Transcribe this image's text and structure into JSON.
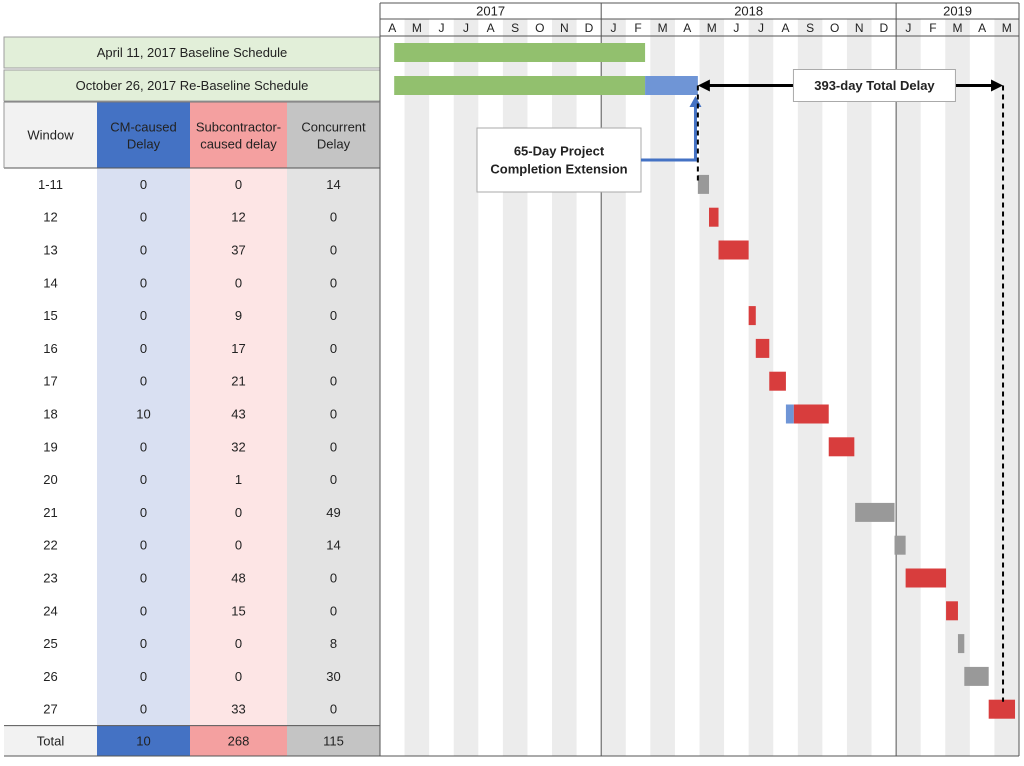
{
  "chart_data": {
    "type": "table",
    "years": [
      "2017",
      "2018",
      "2019"
    ],
    "months": [
      "A",
      "M",
      "J",
      "J",
      "A",
      "S",
      "O",
      "N",
      "D",
      "J",
      "F",
      "M",
      "A",
      "M",
      "J",
      "J",
      "A",
      "S",
      "O",
      "N",
      "D",
      "J",
      "F",
      "M",
      "A",
      "M"
    ],
    "schedules": [
      {
        "label": "April 11, 2017 Baseline Schedule",
        "start": "2017-04-11",
        "end": "2018-02-23",
        "color": "#92c06e"
      },
      {
        "label": "October 26, 2017 Re-Baseline Schedule",
        "start": "2017-04-11",
        "end": "2018-02-23",
        "color": "#92c06e",
        "extension": {
          "start": "2018-02-23",
          "end": "2018-04-29",
          "color": "#6f95d6"
        }
      }
    ],
    "columns": [
      "Window",
      "CM-caused Delay",
      "Subcontractor-caused delay",
      "Concurrent Delay"
    ],
    "column_colors": {
      "cm": "#4472c4",
      "cm_bg": "#d9e0f2",
      "sub": "#f4a0a0",
      "sub_bg": "#fde5e5",
      "conc": "#c4c4c4",
      "conc_bg": "#e3e3e3"
    },
    "rows": [
      {
        "window": "1-11",
        "cm": "0",
        "sub": "0",
        "conc": "14"
      },
      {
        "window": "12",
        "cm": "0",
        "sub": "12",
        "conc": "0"
      },
      {
        "window": "13",
        "cm": "0",
        "sub": "37",
        "conc": "0"
      },
      {
        "window": "14",
        "cm": "0",
        "sub": "0",
        "conc": "0"
      },
      {
        "window": "15",
        "cm": "0",
        "sub": "9",
        "conc": "0"
      },
      {
        "window": "16",
        "cm": "0",
        "sub": "17",
        "conc": "0"
      },
      {
        "window": "17",
        "cm": "0",
        "sub": "21",
        "conc": "0"
      },
      {
        "window": "18",
        "cm": "10",
        "sub": "43",
        "conc": "0"
      },
      {
        "window": "19",
        "cm": "0",
        "sub": "32",
        "conc": "0"
      },
      {
        "window": "20",
        "cm": "0",
        "sub": "1",
        "conc": "0"
      },
      {
        "window": "21",
        "cm": "0",
        "sub": "0",
        "conc": "49"
      },
      {
        "window": "22",
        "cm": "0",
        "sub": "0",
        "conc": "14"
      },
      {
        "window": "23",
        "cm": "0",
        "sub": "48",
        "conc": "0"
      },
      {
        "window": "24",
        "cm": "0",
        "sub": "15",
        "conc": "0"
      },
      {
        "window": "25",
        "cm": "0",
        "sub": "0",
        "conc": "8"
      },
      {
        "window": "26",
        "cm": "0",
        "sub": "0",
        "conc": "30"
      },
      {
        "window": "27",
        "cm": "0",
        "sub": "33",
        "conc": "0"
      }
    ],
    "totals": {
      "window": "Total",
      "cm": "10",
      "sub": "268",
      "conc": "115"
    },
    "delay_bars": [
      {
        "window": "1-11",
        "start": "2018-04-29",
        "days": 14,
        "type": "concurrent"
      },
      {
        "window": "12",
        "start": "2018-05-13",
        "days": 12,
        "type": "subcontractor"
      },
      {
        "window": "13",
        "start": "2018-05-25",
        "days": 37,
        "type": "subcontractor"
      },
      {
        "window": "15",
        "start": "2018-07-01",
        "days": 9,
        "type": "subcontractor"
      },
      {
        "window": "16",
        "start": "2018-07-10",
        "days": 17,
        "type": "subcontractor"
      },
      {
        "window": "17",
        "start": "2018-07-27",
        "days": 21,
        "type": "subcontractor"
      },
      {
        "window": "18",
        "start": "2018-08-17",
        "days": 10,
        "type": "cm"
      },
      {
        "window": "18",
        "start": "2018-08-27",
        "days": 43,
        "type": "subcontractor"
      },
      {
        "window": "19",
        "start": "2018-10-09",
        "days": 32,
        "type": "subcontractor"
      },
      {
        "window": "21",
        "start": "2018-11-11",
        "days": 49,
        "type": "concurrent"
      },
      {
        "window": "22",
        "start": "2018-12-30",
        "days": 14,
        "type": "concurrent"
      },
      {
        "window": "23",
        "start": "2019-01-13",
        "days": 48,
        "type": "subcontractor"
      },
      {
        "window": "24",
        "start": "2019-03-02",
        "days": 15,
        "type": "subcontractor"
      },
      {
        "window": "25",
        "start": "2019-03-17",
        "days": 8,
        "type": "concurrent"
      },
      {
        "window": "26",
        "start": "2019-03-25",
        "days": 30,
        "type": "concurrent"
      },
      {
        "window": "27",
        "start": "2019-04-24",
        "days": 33,
        "type": "subcontractor"
      }
    ],
    "bar_colors": {
      "subcontractor": "#d83d3d",
      "concurrent": "#999999",
      "cm": "#6f95d6"
    },
    "annotations": {
      "extension_label": [
        "65-Day Project",
        "Completion Extension"
      ],
      "total_delay_label": "393-day Total Delay"
    }
  }
}
